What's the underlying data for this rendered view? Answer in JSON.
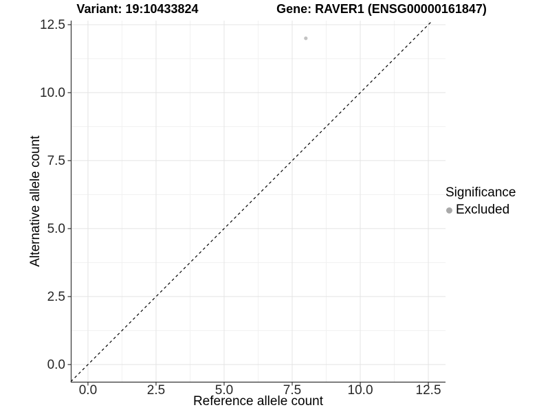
{
  "chart_data": {
    "type": "scatter",
    "titles": {
      "left": "Variant: 19:10433824",
      "right": "Gene: RAVER1 (ENSG00000161847)"
    },
    "xlabel": "Reference allele count",
    "ylabel": "Alternative allele count",
    "xlim": [
      -0.63,
      13.13
    ],
    "ylim": [
      -0.66,
      12.65
    ],
    "xticks": {
      "values": [
        0,
        2.5,
        5,
        7.5,
        10,
        12.5
      ],
      "labels": [
        "0.0",
        "2.5",
        "5.0",
        "7.5",
        "10.0",
        "12.5"
      ]
    },
    "yticks": {
      "values": [
        0,
        2.5,
        5,
        7.5,
        10,
        12.5
      ],
      "labels": [
        "0.0",
        "2.5",
        "5.0",
        "7.5",
        "10.0",
        "12.5"
      ]
    },
    "xminor": [
      1.25,
      3.75,
      6.25,
      8.75,
      11.25
    ],
    "yminor": [
      1.25,
      3.75,
      6.25,
      8.75,
      11.25
    ],
    "grid": {
      "major_color": "#e4e4e4",
      "minor_color": "#f1f1f1"
    },
    "axis": {
      "line_color": "#333333",
      "tick_color": "#333333",
      "label_color": "#262626"
    },
    "identity_line": {
      "style": "dashed",
      "color": "#000000",
      "span": [
        -0.63,
        12.65
      ]
    },
    "points": [
      {
        "x": 8,
        "y": 12,
        "series": "Excluded",
        "color": "#c2c2c2",
        "radius": 2.6
      }
    ],
    "legend": {
      "title": "Significance",
      "position": "right",
      "items": [
        {
          "label": "Excluded",
          "color": "#a9a9a9"
        }
      ]
    }
  }
}
